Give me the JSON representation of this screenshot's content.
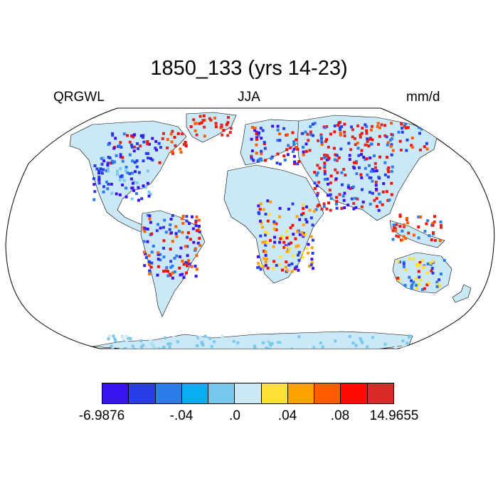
{
  "header": {
    "title": "1850_133 (yrs 14-23)",
    "variable": "QRGWL",
    "season": "JJA",
    "units": "mm/d"
  },
  "colorbar": {
    "colors": [
      "#3a14f0",
      "#2a3ee6",
      "#2b7de9",
      "#0aaef0",
      "#77c8ec",
      "#cbe8f6",
      "#ffe034",
      "#ffa200",
      "#ff5d00",
      "#ff0a00",
      "#d92a2a"
    ],
    "tick_labels": [
      "-6.9876",
      "-.04",
      ".0",
      ".04",
      ".08",
      "14.9655"
    ]
  },
  "map": {
    "projection": "Robinson",
    "ocean_color": "#ffffff",
    "land_base_color": "#cbe8f6"
  }
}
